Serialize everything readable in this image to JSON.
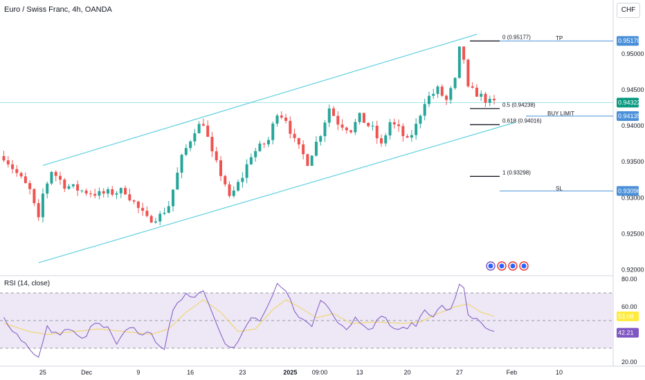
{
  "header": {
    "title": "Euro / Swiss Franc, 4h, OANDA",
    "currency_button": "CHF",
    "rsi_title": "RSI (14, close)"
  },
  "colors": {
    "bull": "#26a69a",
    "bear": "#ef5350",
    "channel": "#5fd0de",
    "level_line": "#4a90d9",
    "rsi": "#7e57c2",
    "rsi_ma": "#f2d45c",
    "rsi_band": "#ede7f6",
    "tag_blue": "#4a90d9",
    "tag_green": "#089981",
    "tag_purple": "#7e57c2",
    "tag_yellow": "#ffeb3b"
  },
  "chart_data": [
    {
      "type": "candlestick",
      "title": "Euro / Swiss Franc, 4h, OANDA",
      "price_axis_ticks": [
        "0.95000",
        "0.94500",
        "0.94000",
        "0.93500",
        "0.93000",
        "0.92500",
        "0.92000"
      ],
      "price_axis_values": [
        0.95,
        0.945,
        0.94,
        0.935,
        0.93,
        0.925,
        0.92
      ],
      "ylim": [
        0.9193,
        0.9565
      ],
      "time_axis_labels": [
        "25",
        "Dec",
        "9",
        "16",
        "23",
        "2025",
        "09:00",
        "13",
        "20",
        "27",
        "Feb",
        "10"
      ],
      "time_axis_index": [
        9,
        19,
        31,
        43,
        55,
        66,
        73,
        82,
        93,
        105,
        117,
        128
      ],
      "bar_count": 114,
      "close_path": [
        [
          0,
          0.9358
        ],
        [
          6,
          0.931
        ],
        [
          8,
          0.9268
        ],
        [
          9,
          0.9305
        ],
        [
          11,
          0.9338
        ],
        [
          14,
          0.9318
        ],
        [
          18,
          0.931
        ],
        [
          22,
          0.9305
        ],
        [
          28,
          0.931
        ],
        [
          31,
          0.9285
        ],
        [
          33,
          0.927
        ],
        [
          36,
          0.9275
        ],
        [
          38,
          0.929
        ],
        [
          41,
          0.9355
        ],
        [
          44,
          0.9395
        ],
        [
          46,
          0.9405
        ],
        [
          48,
          0.936
        ],
        [
          51,
          0.932
        ],
        [
          52,
          0.9298
        ],
        [
          55,
          0.933
        ],
        [
          57,
          0.936
        ],
        [
          61,
          0.938
        ],
        [
          63,
          0.942
        ],
        [
          65,
          0.941
        ],
        [
          67,
          0.9378
        ],
        [
          70,
          0.935
        ],
        [
          73,
          0.939
        ],
        [
          75,
          0.9425
        ],
        [
          77,
          0.9405
        ],
        [
          80,
          0.9395
        ],
        [
          82,
          0.9412
        ],
        [
          85,
          0.9395
        ],
        [
          87,
          0.9372
        ],
        [
          89,
          0.9405
        ],
        [
          91,
          0.9395
        ],
        [
          93,
          0.9378
        ],
        [
          95,
          0.94
        ],
        [
          97,
          0.9435
        ],
        [
          100,
          0.945
        ],
        [
          102,
          0.9435
        ],
        [
          104,
          0.9462
        ],
        [
          105,
          0.9505
        ],
        [
          106,
          0.9493
        ],
        [
          107,
          0.945
        ],
        [
          109,
          0.9445
        ],
        [
          112,
          0.9432
        ],
        [
          113,
          0.94322
        ]
      ],
      "channel": {
        "upper": [
          [
            9,
            0.9345
          ],
          [
            109,
            0.9527
          ]
        ],
        "lower": [
          [
            8,
            0.921
          ],
          [
            118,
            0.9405
          ]
        ]
      },
      "fibonacci": [
        {
          "label": "0 (0.95177)",
          "value": 0.95177
        },
        {
          "label": "0.5 (0.94238)",
          "value": 0.94238
        },
        {
          "label": "0.618 (0.94016)",
          "value": 0.94016
        },
        {
          "label": "1 (0.93298)",
          "value": 0.93298
        }
      ],
      "levels": [
        {
          "label": "TP",
          "value": 0.95178,
          "tag": "0.95178"
        },
        {
          "label": "BUY LIMIT",
          "value": 0.94135,
          "tag": "0.94135"
        },
        {
          "label": "SL",
          "value": 0.93096,
          "tag": "0.93096"
        }
      ],
      "last_price": {
        "value": 0.94322,
        "tag": "0.94322"
      },
      "event_markers": 4
    },
    {
      "type": "line",
      "title": "RSI (14, close)",
      "axis_ticks": [
        "80.00",
        "60.00",
        "20.00"
      ],
      "axis_values": [
        80,
        60,
        20
      ],
      "ylim": [
        18,
        82
      ],
      "band": [
        30,
        70
      ],
      "midline": 50,
      "rsi_path": [
        [
          0,
          52
        ],
        [
          3,
          40
        ],
        [
          6,
          30
        ],
        [
          8,
          23
        ],
        [
          10,
          45
        ],
        [
          12,
          40
        ],
        [
          15,
          44
        ],
        [
          18,
          36
        ],
        [
          21,
          48
        ],
        [
          24,
          44
        ],
        [
          26,
          32
        ],
        [
          29,
          46
        ],
        [
          31,
          42
        ],
        [
          34,
          39
        ],
        [
          37,
          30
        ],
        [
          39,
          56
        ],
        [
          42,
          71
        ],
        [
          44,
          67
        ],
        [
          46,
          73
        ],
        [
          48,
          56
        ],
        [
          51,
          35
        ],
        [
          53,
          30
        ],
        [
          55,
          40
        ],
        [
          57,
          52
        ],
        [
          59,
          50
        ],
        [
          61,
          60
        ],
        [
          63,
          75
        ],
        [
          65,
          71
        ],
        [
          67,
          58
        ],
        [
          69,
          50
        ],
        [
          71,
          46
        ],
        [
          73,
          65
        ],
        [
          75,
          60
        ],
        [
          77,
          50
        ],
        [
          79,
          44
        ],
        [
          81,
          52
        ],
        [
          83,
          48
        ],
        [
          85,
          43
        ],
        [
          87,
          55
        ],
        [
          89,
          47
        ],
        [
          91,
          42
        ],
        [
          93,
          46
        ],
        [
          95,
          47
        ],
        [
          97,
          58
        ],
        [
          99,
          54
        ],
        [
          101,
          60
        ],
        [
          103,
          57
        ],
        [
          104,
          65
        ],
        [
          105,
          77
        ],
        [
          106,
          74
        ],
        [
          107,
          55
        ],
        [
          109,
          50
        ],
        [
          111,
          44
        ],
        [
          113,
          42.21
        ]
      ],
      "ma_path": [
        [
          0,
          48
        ],
        [
          6,
          42
        ],
        [
          10,
          40
        ],
        [
          16,
          42
        ],
        [
          22,
          44
        ],
        [
          28,
          42
        ],
        [
          34,
          40
        ],
        [
          38,
          44
        ],
        [
          42,
          56
        ],
        [
          46,
          65
        ],
        [
          50,
          56
        ],
        [
          54,
          42
        ],
        [
          58,
          44
        ],
        [
          62,
          58
        ],
        [
          65,
          65
        ],
        [
          68,
          60
        ],
        [
          72,
          52
        ],
        [
          76,
          55
        ],
        [
          80,
          48
        ],
        [
          86,
          49
        ],
        [
          92,
          48
        ],
        [
          96,
          49
        ],
        [
          100,
          55
        ],
        [
          104,
          60
        ],
        [
          107,
          62
        ],
        [
          110,
          56
        ],
        [
          113,
          53.08
        ]
      ],
      "tags": [
        {
          "label": "53.08",
          "value": 53.08
        },
        {
          "label": "42.21",
          "value": 42.21
        }
      ]
    }
  ]
}
